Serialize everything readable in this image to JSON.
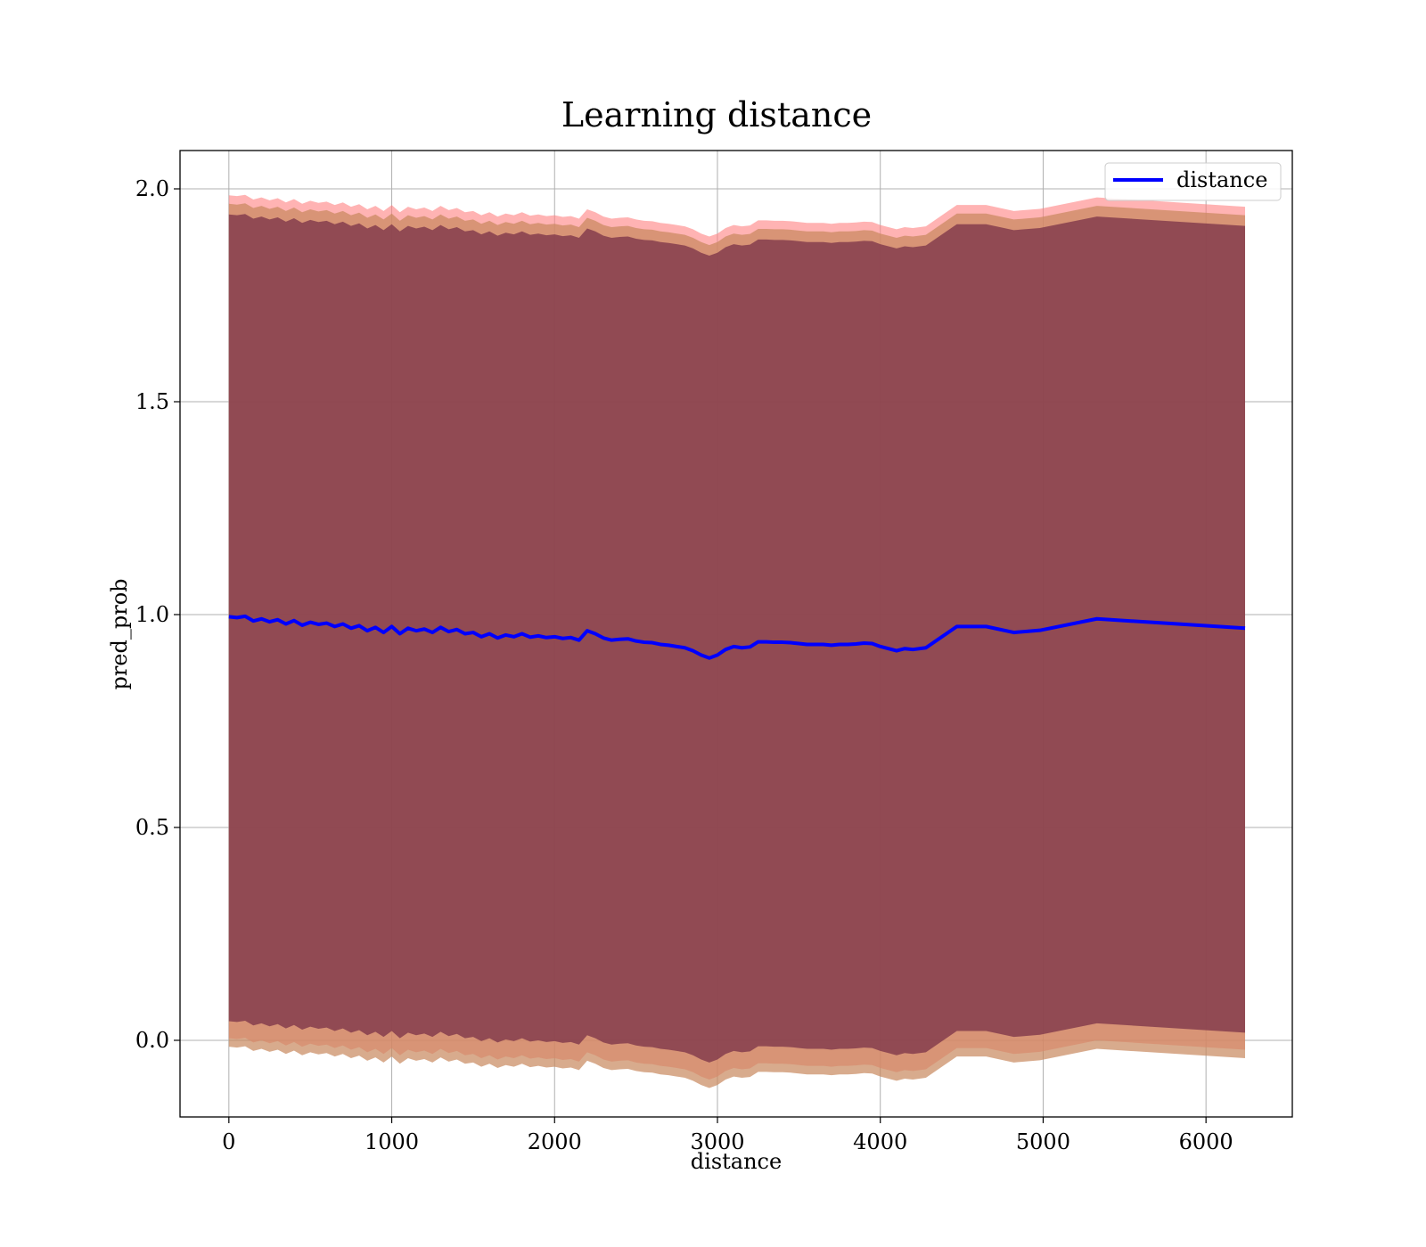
{
  "chart_data": {
    "type": "line",
    "title": "Learning distance",
    "xlabel": "distance",
    "ylabel": "pred_prob",
    "xlim": [
      -300,
      6530
    ],
    "ylim": [
      -0.18,
      2.09
    ],
    "xticks": [
      0,
      1000,
      2000,
      3000,
      4000,
      5000,
      6000
    ],
    "xtick_labels": [
      "0",
      "1000",
      "2000",
      "3000",
      "4000",
      "5000",
      "6000"
    ],
    "yticks": [
      0.0,
      0.5,
      1.0,
      1.5,
      2.0
    ],
    "ytick_labels": [
      "0.0",
      "0.5",
      "1.0",
      "1.5",
      "2.0"
    ],
    "grid": true,
    "legend": {
      "position": "top-right",
      "entries": [
        "distance"
      ]
    },
    "colors": {
      "line": "#0000ff",
      "inner_band": "#7a3248",
      "middle_band": "#c8875c",
      "outer_band": "#ff8080",
      "grid": "#b0b0b0"
    },
    "series": [
      {
        "name": "distance",
        "x": [
          0,
          50,
          100,
          150,
          200,
          250,
          300,
          350,
          400,
          450,
          500,
          550,
          600,
          650,
          700,
          750,
          800,
          850,
          900,
          950,
          1000,
          1050,
          1100,
          1150,
          1200,
          1250,
          1300,
          1350,
          1400,
          1450,
          1500,
          1550,
          1600,
          1650,
          1700,
          1750,
          1800,
          1850,
          1900,
          1950,
          2000,
          2050,
          2100,
          2150,
          2200,
          2250,
          2300,
          2350,
          2400,
          2450,
          2500,
          2550,
          2600,
          2650,
          2700,
          2750,
          2800,
          2850,
          2900,
          2950,
          3000,
          3050,
          3100,
          3150,
          3200,
          3250,
          3300,
          3350,
          3400,
          3450,
          3500,
          3550,
          3600,
          3650,
          3700,
          3750,
          3800,
          3850,
          3900,
          3950,
          4000,
          4050,
          4100,
          4150,
          4200,
          4280,
          4470,
          4650,
          4820,
          4980,
          5330,
          6240
        ],
        "y": [
          0.995,
          0.993,
          0.996,
          0.985,
          0.99,
          0.983,
          0.988,
          0.978,
          0.986,
          0.975,
          0.982,
          0.977,
          0.98,
          0.972,
          0.978,
          0.968,
          0.974,
          0.962,
          0.97,
          0.958,
          0.972,
          0.955,
          0.968,
          0.962,
          0.966,
          0.958,
          0.97,
          0.96,
          0.965,
          0.955,
          0.958,
          0.948,
          0.955,
          0.945,
          0.952,
          0.948,
          0.955,
          0.947,
          0.95,
          0.946,
          0.948,
          0.944,
          0.946,
          0.94,
          0.962,
          0.955,
          0.945,
          0.94,
          0.942,
          0.943,
          0.938,
          0.935,
          0.934,
          0.93,
          0.928,
          0.925,
          0.922,
          0.915,
          0.905,
          0.898,
          0.905,
          0.918,
          0.925,
          0.922,
          0.924,
          0.936,
          0.936,
          0.935,
          0.935,
          0.934,
          0.932,
          0.93,
          0.93,
          0.93,
          0.928,
          0.93,
          0.93,
          0.931,
          0.933,
          0.932,
          0.925,
          0.92,
          0.915,
          0.92,
          0.918,
          0.922,
          0.972,
          0.972,
          0.958,
          0.963,
          0.99,
          0.968
        ]
      }
    ],
    "bands": [
      {
        "lower_offset": -0.99,
        "upper_offset": 0.99
      },
      {
        "lower_offset": -1.01,
        "upper_offset": 0.97
      },
      {
        "lower_offset": -0.95,
        "upper_offset": 0.945
      }
    ]
  }
}
